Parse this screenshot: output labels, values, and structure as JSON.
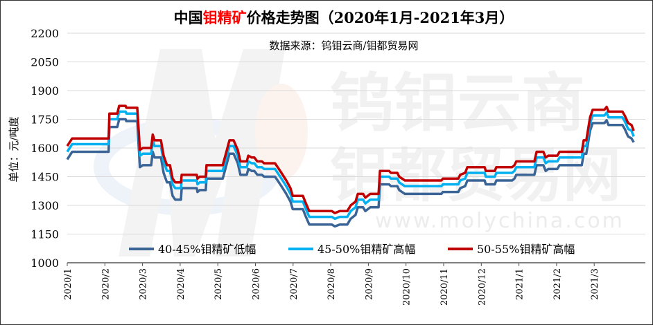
{
  "chart_data": {
    "type": "line",
    "title_parts": [
      "中国",
      "钼精矿",
      "价格走势图（2020年1月-2021年3月）"
    ],
    "subtitle": "数据来源：钨钼云商/钼都贸易网",
    "ylabel": "单位：元/吨度",
    "xlabel": "",
    "ylim": [
      1000,
      2200
    ],
    "yticks": [
      1000,
      1150,
      1300,
      1450,
      1600,
      1750,
      1900,
      2050,
      2200
    ],
    "xlim": [
      0,
      15.1
    ],
    "xtick_labels": [
      "2020/1",
      "2020/2",
      "2020/3",
      "2020/4",
      "2020/5",
      "2020/6",
      "2020/7",
      "2020/8",
      "2020/9",
      "2020/10",
      "2020/11",
      "2020/12",
      "2021/1",
      "2021/2",
      "2021/3"
    ],
    "grid": true,
    "legend": "bottom",
    "watermark": [
      "钨钼云商",
      "钼都贸易网",
      "www.molychina.com"
    ],
    "x": [
      0,
      0.13,
      1.1,
      1.12,
      1.33,
      1.38,
      1.55,
      1.57,
      1.86,
      1.93,
      2.01,
      2.23,
      2.27,
      2.32,
      2.49,
      2.56,
      2.65,
      2.73,
      2.8,
      2.87,
      3.02,
      3.04,
      3.44,
      3.46,
      3.52,
      3.68,
      3.7,
      4.13,
      4.2,
      4.31,
      4.42,
      4.53,
      4.6,
      4.77,
      4.81,
      4.9,
      4.97,
      5.05,
      5.17,
      5.23,
      5.52,
      5.59,
      5.69,
      5.82,
      5.93,
      5.99,
      6.26,
      6.34,
      6.43,
      7.03,
      7.11,
      7.24,
      7.44,
      7.53,
      7.66,
      7.72,
      7.86,
      7.92,
      8.05,
      8.27,
      8.31,
      8.55,
      8.6,
      8.77,
      8.82,
      8.97,
      9.94,
      9.98,
      10.39,
      10.44,
      10.57,
      10.63,
      11.09,
      11.12,
      11.36,
      11.4,
      11.82,
      11.88,
      11.93,
      12.41,
      12.47,
      12.65,
      12.71,
      12.78,
      13.02,
      13.08,
      13.67,
      13.72,
      13.79,
      13.89,
      13.96,
      14.27,
      14.33,
      14.38,
      14.75,
      14.81,
      14.9,
      14.99,
      15.05
    ],
    "series": [
      {
        "name": "40-45%钼精矿低幅",
        "color": "#3a6496",
        "values": [
          1540,
          1580,
          1580,
          1710,
          1710,
          1750,
          1750,
          1740,
          1740,
          1500,
          1510,
          1510,
          1580,
          1550,
          1550,
          1470,
          1420,
          1420,
          1350,
          1330,
          1330,
          1390,
          1390,
          1370,
          1380,
          1380,
          1440,
          1440,
          1490,
          1570,
          1570,
          1520,
          1460,
          1460,
          1490,
          1480,
          1480,
          1460,
          1460,
          1450,
          1450,
          1430,
          1400,
          1360,
          1320,
          1280,
          1280,
          1240,
          1200,
          1200,
          1190,
          1200,
          1200,
          1230,
          1250,
          1290,
          1290,
          1270,
          1290,
          1290,
          1410,
          1410,
          1400,
          1400,
          1380,
          1360,
          1360,
          1370,
          1370,
          1390,
          1400,
          1430,
          1430,
          1410,
          1410,
          1430,
          1430,
          1440,
          1460,
          1460,
          1510,
          1510,
          1480,
          1490,
          1490,
          1510,
          1510,
          1570,
          1570,
          1690,
          1730,
          1730,
          1745,
          1720,
          1720,
          1700,
          1660,
          1650,
          1630
        ]
      },
      {
        "name": "45-50%钼精矿高幅",
        "color": "#00b0f0",
        "values": [
          1580,
          1620,
          1620,
          1750,
          1750,
          1790,
          1790,
          1780,
          1780,
          1560,
          1570,
          1570,
          1640,
          1610,
          1610,
          1530,
          1480,
          1480,
          1410,
          1390,
          1390,
          1430,
          1430,
          1410,
          1420,
          1420,
          1480,
          1480,
          1530,
          1610,
          1610,
          1560,
          1500,
          1500,
          1530,
          1520,
          1520,
          1500,
          1500,
          1490,
          1490,
          1470,
          1440,
          1400,
          1360,
          1320,
          1320,
          1280,
          1240,
          1240,
          1230,
          1240,
          1240,
          1270,
          1290,
          1330,
          1330,
          1310,
          1330,
          1330,
          1450,
          1450,
          1440,
          1440,
          1420,
          1400,
          1400,
          1410,
          1410,
          1430,
          1440,
          1470,
          1470,
          1450,
          1450,
          1470,
          1470,
          1480,
          1500,
          1500,
          1550,
          1550,
          1520,
          1530,
          1530,
          1550,
          1550,
          1610,
          1610,
          1730,
          1770,
          1770,
          1785,
          1760,
          1760,
          1740,
          1700,
          1690,
          1660
        ]
      },
      {
        "name": "50-55%钼精矿高幅",
        "color": "#c00000",
        "values": [
          1610,
          1650,
          1650,
          1780,
          1780,
          1820,
          1820,
          1810,
          1810,
          1590,
          1600,
          1600,
          1670,
          1640,
          1640,
          1560,
          1510,
          1510,
          1440,
          1420,
          1420,
          1460,
          1460,
          1440,
          1450,
          1450,
          1510,
          1510,
          1560,
          1640,
          1640,
          1590,
          1530,
          1530,
          1560,
          1550,
          1550,
          1530,
          1530,
          1520,
          1520,
          1500,
          1470,
          1430,
          1390,
          1350,
          1350,
          1310,
          1270,
          1270,
          1260,
          1270,
          1270,
          1300,
          1320,
          1360,
          1360,
          1340,
          1360,
          1360,
          1480,
          1480,
          1470,
          1470,
          1450,
          1430,
          1430,
          1440,
          1440,
          1460,
          1470,
          1500,
          1500,
          1480,
          1480,
          1500,
          1500,
          1510,
          1530,
          1530,
          1580,
          1580,
          1550,
          1560,
          1560,
          1580,
          1580,
          1640,
          1640,
          1760,
          1800,
          1800,
          1815,
          1790,
          1790,
          1770,
          1730,
          1720,
          1690
        ]
      }
    ]
  }
}
